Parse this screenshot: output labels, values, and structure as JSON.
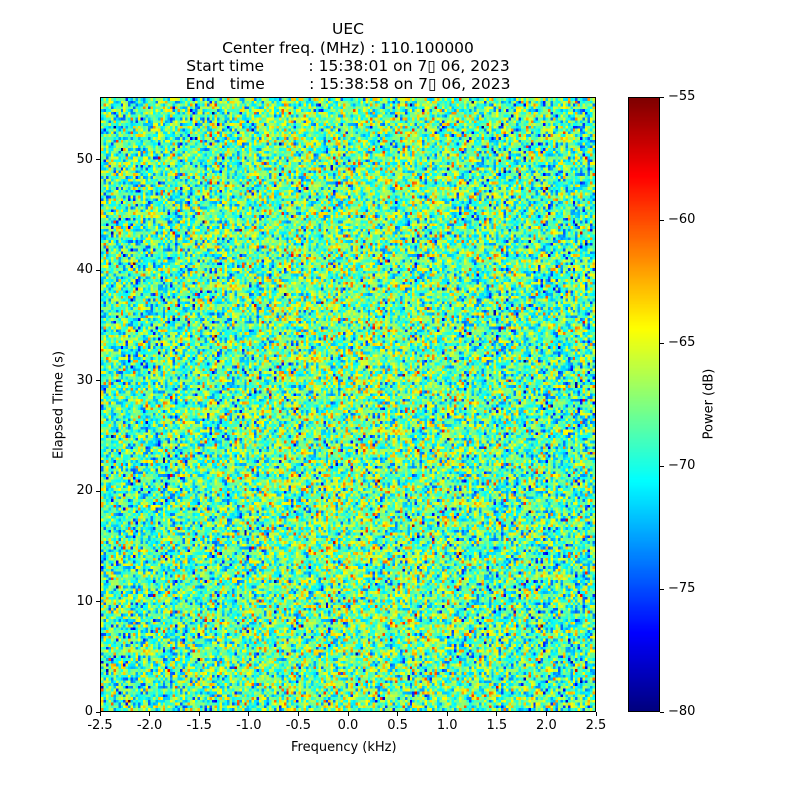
{
  "chart_data": {
    "type": "heatmap",
    "title": [
      "UEC",
      "Center freq. (MHz) : 110.100000",
      "Start time         : 15:38:01 on 7▯ 06, 2023",
      "End   time         : 15:38:58 on 7▯ 06, 2023"
    ],
    "xlabel": "Frequency (kHz)",
    "ylabel": "Elapsed Time (s)",
    "xlim": [
      -2.5,
      2.5
    ],
    "ylim": [
      0,
      55.7
    ],
    "xticks": [
      -2.5,
      -2.0,
      -1.5,
      -1.0,
      -0.5,
      0.0,
      0.5,
      1.0,
      1.5,
      2.0,
      2.5
    ],
    "xtick_labels": [
      "-2.5",
      "-2.0",
      "-1.5",
      "-1.0",
      "-0.5",
      "0.0",
      "0.5",
      "1.0",
      "1.5",
      "2.0",
      "2.5"
    ],
    "yticks": [
      0,
      10,
      20,
      30,
      40,
      50
    ],
    "ytick_labels": [
      "0",
      "10",
      "20",
      "30",
      "40",
      "50"
    ],
    "colorbar": {
      "label": "Power (dB)",
      "colormap": "jet",
      "range": [
        -80,
        -55
      ],
      "ticks": [
        -80,
        -75,
        -70,
        -65,
        -60,
        -55
      ],
      "tick_labels": [
        "−80",
        "−75",
        "−70",
        "−65",
        "−60",
        "−55"
      ]
    },
    "grid": false,
    "description_of_values": "noise-like power ~ -68 dB mean, std ~3.5 dB, slightly higher near 0 kHz",
    "n_freq_bins": 200,
    "n_time_bins": 220
  }
}
